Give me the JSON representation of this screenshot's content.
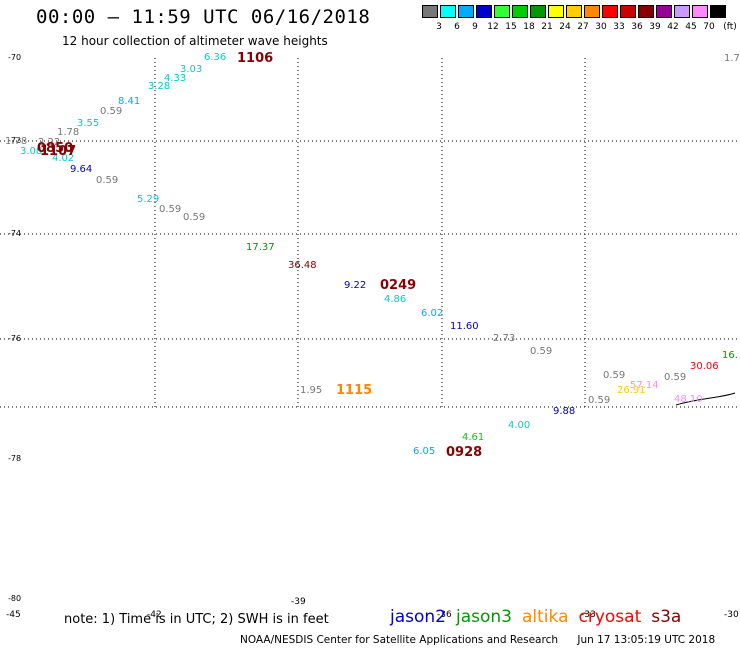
{
  "header": {
    "title": "00:00 – 11:59 UTC 06/16/2018",
    "subtitle": "12 hour collection of altimeter wave heights"
  },
  "legend": {
    "bins": [
      {
        "label": "3",
        "color": "#777777"
      },
      {
        "label": "6",
        "color": "#00ffff"
      },
      {
        "label": "9",
        "color": "#00aaff"
      },
      {
        "label": "12",
        "color": "#0000cc"
      },
      {
        "label": "15",
        "color": "#33ff33"
      },
      {
        "label": "18",
        "color": "#00cc00"
      },
      {
        "label": "21",
        "color": "#009900"
      },
      {
        "label": "24",
        "color": "#ffff00"
      },
      {
        "label": "27",
        "color": "#ffcc00"
      },
      {
        "label": "30",
        "color": "#ff8800"
      },
      {
        "label": "33",
        "color": "#ff0000"
      },
      {
        "label": "36",
        "color": "#cc0000"
      },
      {
        "label": "39",
        "color": "#880000"
      },
      {
        "label": "42",
        "color": "#990099"
      },
      {
        "label": "45",
        "color": "#cc99ff"
      },
      {
        "label": "70",
        "color": "#ff88ff"
      },
      {
        "label": "",
        "color": "#000000"
      }
    ],
    "unit": "(ft)"
  },
  "lat_labels": [
    "-70",
    "-72",
    "-74",
    "-76",
    "-78",
    "-80"
  ],
  "lon_labels": [
    "-45",
    "-42",
    "-39",
    "-36",
    "-33",
    "-30"
  ],
  "right_edge_label": "1.7",
  "observations": [
    {
      "text": "6.36",
      "color": "#00cccc"
    },
    {
      "text": "3.03",
      "color": "#00cccc"
    },
    {
      "text": "4.33",
      "color": "#00cccc"
    },
    {
      "text": "3.28",
      "color": "#00cccc"
    },
    {
      "text": "8.41",
      "color": "#00aaff"
    },
    {
      "text": "0.59",
      "color": "#777777"
    },
    {
      "text": "3.55",
      "color": "#00cccc"
    },
    {
      "text": "1.78",
      "color": "#777777"
    },
    {
      "text": "2.22",
      "color": "#777777"
    },
    {
      "text": "1.78",
      "color": "#777777"
    },
    {
      "text": "3.08",
      "color": "#00cccc"
    },
    {
      "text": "4.02",
      "color": "#00cccc"
    },
    {
      "text": "9.64",
      "color": "#0000cc"
    },
    {
      "text": "0.59",
      "color": "#777777"
    },
    {
      "text": "5.29",
      "color": "#00cccc"
    },
    {
      "text": "0.59",
      "color": "#777777"
    },
    {
      "text": "0.59",
      "color": "#777777"
    },
    {
      "text": "17.37",
      "color": "#009900"
    },
    {
      "text": "36.48",
      "color": "#880000"
    },
    {
      "text": "9.22",
      "color": "#0000cc"
    },
    {
      "text": "4.86",
      "color": "#00cccc"
    },
    {
      "text": "6.02",
      "color": "#00aaff"
    },
    {
      "text": "11.60",
      "color": "#0000cc"
    },
    {
      "text": "2.73",
      "color": "#777777"
    },
    {
      "text": "0.59",
      "color": "#777777"
    },
    {
      "text": "1.95",
      "color": "#777777"
    },
    {
      "text": "16.",
      "color": "#009900"
    },
    {
      "text": "30.06",
      "color": "#ff0000"
    },
    {
      "text": "0.59",
      "color": "#777777"
    },
    {
      "text": "0.59",
      "color": "#777777"
    },
    {
      "text": "57.14",
      "color": "#ff88ff"
    },
    {
      "text": "26.91",
      "color": "#ffcc00"
    },
    {
      "text": "0.59",
      "color": "#777777"
    },
    {
      "text": "48.10",
      "color": "#ff88ff"
    },
    {
      "text": "9.88",
      "color": "#0000cc"
    },
    {
      "text": "4.00",
      "color": "#00cccc"
    },
    {
      "text": "4.61",
      "color": "#00cc00"
    },
    {
      "text": "6.05",
      "color": "#00aaff"
    }
  ],
  "time_stamps": [
    {
      "text": "1106",
      "color": "#880000"
    },
    {
      "text": "0850",
      "color": "#880000"
    },
    {
      "text": "1107",
      "color": "#880000"
    },
    {
      "text": "0249",
      "color": "#880000"
    },
    {
      "text": "1115",
      "color": "#ff8800"
    },
    {
      "text": "0928",
      "color": "#880000"
    }
  ],
  "footer": {
    "note": "note: 1) Time is in UTC; 2) SWH is in feet",
    "satellites": [
      {
        "name": "jason2",
        "color": "#0000cc"
      },
      {
        "name": "jason3",
        "color": "#009900"
      },
      {
        "name": "altika",
        "color": "#ff8800"
      },
      {
        "name": "cryosat",
        "color": "#ff0000"
      },
      {
        "name": "s3a",
        "color": "#880000"
      }
    ],
    "credit": "NOAA/NESDIS Center for Satellite Applications and Research",
    "timestamp": "Jun 17 13:05:19 UTC 2018"
  }
}
